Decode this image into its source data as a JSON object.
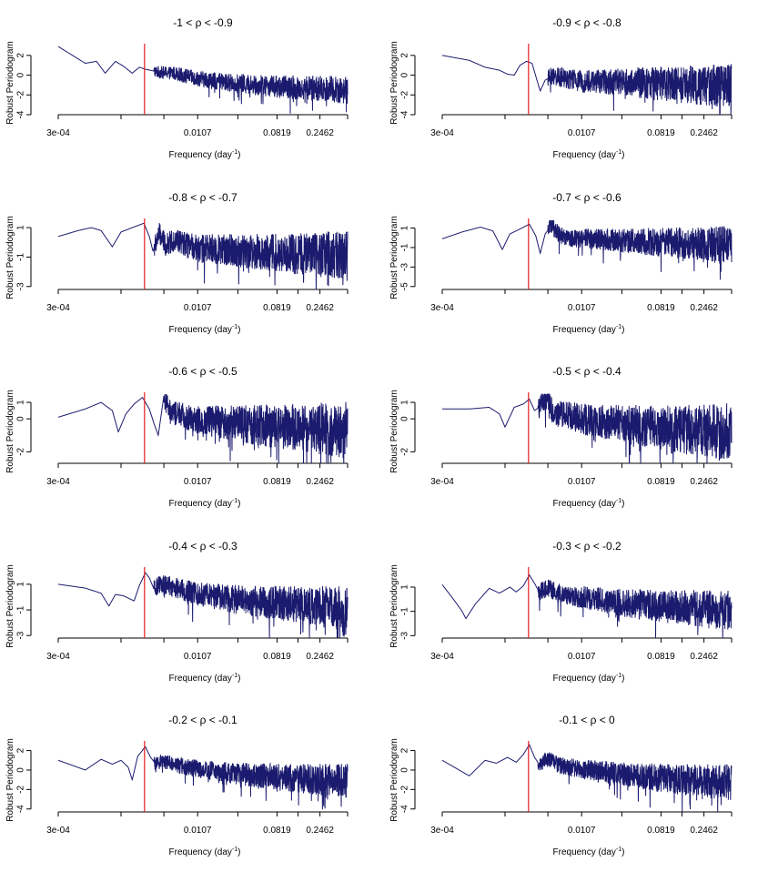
{
  "figure": {
    "xlabel": "Frequency (day",
    "xlabel_sup": "-1",
    "xlabel_close": ")",
    "ylabel": "Robust Periodogram",
    "x_tick_labels": [
      "3e-04",
      "0.0107",
      "0.0819",
      "0.2462"
    ],
    "x_tick_values": [
      0.0003,
      0.0107,
      0.0819,
      0.2462
    ],
    "x_range": [
      0.0003,
      0.5
    ],
    "line_color": "#1a1a6e",
    "marker_color": "#e41a1c",
    "marker_frequency": 0.00274
  },
  "chart_data": [
    {
      "type": "line",
      "title": "-1 < ρ <  -0.9",
      "ylim": [
        -4,
        3
      ],
      "yticks": [
        -4,
        -2,
        0,
        2
      ],
      "knots": [
        [
          0.0003,
          2.9
        ],
        [
          0.0006,
          1.2
        ],
        [
          0.0008,
          1.4
        ],
        [
          0.001,
          0.2
        ],
        [
          0.0013,
          1.4
        ],
        [
          0.0016,
          0.9
        ],
        [
          0.002,
          0.2
        ],
        [
          0.0024,
          0.8
        ],
        [
          0.0028,
          0.6
        ],
        [
          0.004,
          0.3
        ],
        [
          0.006,
          0.2
        ],
        [
          0.01,
          -0.3
        ],
        [
          0.02,
          -0.7
        ],
        [
          0.05,
          -1.0
        ],
        [
          0.1,
          -1.2
        ],
        [
          0.2,
          -1.3
        ],
        [
          0.5,
          -1.5
        ]
      ],
      "noise_start": 0.0035,
      "noise_amp": 0.6,
      "noise_growth": 1.4,
      "dip_bias": 1.2
    },
    {
      "type": "line",
      "title": "-0.9 < ρ <  -0.8",
      "ylim": [
        -4,
        3
      ],
      "yticks": [
        -4,
        -2,
        0,
        2
      ],
      "knots": [
        [
          0.0003,
          2.0
        ],
        [
          0.0006,
          1.5
        ],
        [
          0.0009,
          0.8
        ],
        [
          0.0013,
          0.5
        ],
        [
          0.0016,
          0.1
        ],
        [
          0.0019,
          0.0
        ],
        [
          0.0022,
          1.0
        ],
        [
          0.0026,
          1.4
        ],
        [
          0.003,
          1.2
        ],
        [
          0.0034,
          -0.5
        ],
        [
          0.0037,
          -1.6
        ],
        [
          0.0042,
          -0.5
        ],
        [
          0.005,
          -0.1
        ],
        [
          0.007,
          -0.3
        ],
        [
          0.01,
          -0.6
        ],
        [
          0.03,
          -0.7
        ],
        [
          0.1,
          -0.9
        ],
        [
          0.5,
          -1.1
        ]
      ],
      "noise_start": 0.0045,
      "noise_amp": 0.9,
      "noise_growth": 1.5,
      "dip_bias": 1.3
    },
    {
      "type": "line",
      "title": "-0.8 < ρ <  -0.7",
      "ylim": [
        -3.2,
        1.5
      ],
      "yticks": [
        -3,
        -1,
        1
      ],
      "knots": [
        [
          0.0003,
          0.4
        ],
        [
          0.0005,
          0.8
        ],
        [
          0.0007,
          1.0
        ],
        [
          0.0009,
          0.8
        ],
        [
          0.0012,
          -0.3
        ],
        [
          0.0015,
          0.7
        ],
        [
          0.002,
          1.0
        ],
        [
          0.0027,
          1.3
        ],
        [
          0.0031,
          0.4
        ],
        [
          0.0034,
          -0.6
        ],
        [
          0.004,
          0.6
        ],
        [
          0.0047,
          -0.2
        ],
        [
          0.006,
          0.2
        ],
        [
          0.008,
          -0.2
        ],
        [
          0.012,
          -0.4
        ],
        [
          0.04,
          -0.6
        ],
        [
          0.2,
          -0.8
        ],
        [
          0.5,
          -0.9
        ]
      ],
      "noise_start": 0.0035,
      "noise_amp": 0.7,
      "noise_growth": 1.4,
      "dip_bias": 1.2
    },
    {
      "type": "line",
      "title": "-0.7 < ρ <  -0.6",
      "ylim": [
        -5.3,
        1.8
      ],
      "yticks": [
        -5,
        -3,
        -1,
        1
      ],
      "knots": [
        [
          0.0003,
          -0.1
        ],
        [
          0.0005,
          0.6
        ],
        [
          0.0008,
          1.1
        ],
        [
          0.0011,
          0.7
        ],
        [
          0.0014,
          -1.2
        ],
        [
          0.0017,
          0.4
        ],
        [
          0.0022,
          0.9
        ],
        [
          0.0028,
          1.4
        ],
        [
          0.0033,
          0.2
        ],
        [
          0.0037,
          -1.6
        ],
        [
          0.0042,
          0.4
        ],
        [
          0.005,
          1.3
        ],
        [
          0.006,
          0.3
        ],
        [
          0.008,
          0.0
        ],
        [
          0.02,
          -0.2
        ],
        [
          0.1,
          -0.5
        ],
        [
          0.5,
          -0.7
        ]
      ],
      "noise_start": 0.0045,
      "noise_amp": 0.8,
      "noise_growth": 1.4,
      "dip_bias": 1.4
    },
    {
      "type": "line",
      "title": "-0.6 < ρ <  -0.5",
      "ylim": [
        -2.7,
        1.5
      ],
      "yticks": [
        -2,
        0,
        1
      ],
      "knots": [
        [
          0.0003,
          0.1
        ],
        [
          0.0006,
          0.6
        ],
        [
          0.0009,
          1.0
        ],
        [
          0.0012,
          0.5
        ],
        [
          0.0014,
          -0.8
        ],
        [
          0.0017,
          0.3
        ],
        [
          0.0021,
          0.9
        ],
        [
          0.0026,
          1.3
        ],
        [
          0.0031,
          0.6
        ],
        [
          0.0035,
          -0.3
        ],
        [
          0.0039,
          -1.0
        ],
        [
          0.0045,
          1.4
        ],
        [
          0.0052,
          0.4
        ],
        [
          0.007,
          0.2
        ],
        [
          0.01,
          0.0
        ],
        [
          0.03,
          -0.3
        ],
        [
          0.1,
          -0.5
        ],
        [
          0.5,
          -0.7
        ]
      ],
      "noise_start": 0.0045,
      "noise_amp": 0.7,
      "noise_growth": 1.5,
      "dip_bias": 1.2
    },
    {
      "type": "line",
      "title": "-0.5 < ρ <  -0.4",
      "ylim": [
        -2.7,
        1.5
      ],
      "yticks": [
        -2,
        0,
        1
      ],
      "knots": [
        [
          0.0003,
          0.6
        ],
        [
          0.0006,
          0.6
        ],
        [
          0.001,
          0.7
        ],
        [
          0.0013,
          0.3
        ],
        [
          0.0015,
          -0.5
        ],
        [
          0.0019,
          0.7
        ],
        [
          0.0024,
          0.9
        ],
        [
          0.0028,
          1.2
        ],
        [
          0.0032,
          0.5
        ],
        [
          0.0038,
          0.8
        ],
        [
          0.0045,
          1.4
        ],
        [
          0.0052,
          0.2
        ],
        [
          0.007,
          0.3
        ],
        [
          0.01,
          0.0
        ],
        [
          0.03,
          -0.3
        ],
        [
          0.1,
          -0.6
        ],
        [
          0.5,
          -0.8
        ]
      ],
      "noise_start": 0.0035,
      "noise_amp": 0.7,
      "noise_growth": 1.5,
      "dip_bias": 1.3
    },
    {
      "type": "line",
      "title": "-0.4 < ρ <  -0.3",
      "ylim": [
        -3.2,
        2.2
      ],
      "yticks": [
        -3,
        -1,
        1
      ],
      "knots": [
        [
          0.0003,
          1.0
        ],
        [
          0.0006,
          0.7
        ],
        [
          0.0009,
          0.3
        ],
        [
          0.0011,
          -0.7
        ],
        [
          0.0013,
          0.2
        ],
        [
          0.0016,
          0.1
        ],
        [
          0.0021,
          -0.3
        ],
        [
          0.0024,
          0.9
        ],
        [
          0.0028,
          1.9
        ],
        [
          0.0031,
          1.5
        ],
        [
          0.0035,
          0.6
        ],
        [
          0.004,
          1.0
        ],
        [
          0.005,
          0.9
        ],
        [
          0.007,
          0.6
        ],
        [
          0.01,
          0.3
        ],
        [
          0.03,
          -0.2
        ],
        [
          0.1,
          -0.5
        ],
        [
          0.5,
          -0.8
        ]
      ],
      "noise_start": 0.0035,
      "noise_amp": 0.7,
      "noise_growth": 1.4,
      "dip_bias": 1.2
    },
    {
      "type": "line",
      "title": "-0.3 < ρ <  -0.2",
      "ylim": [
        -3.2,
        2.5
      ],
      "yticks": [
        -3,
        -1,
        1
      ],
      "knots": [
        [
          0.0003,
          1.2
        ],
        [
          0.0004,
          0.0
        ],
        [
          0.0005,
          -1.0
        ],
        [
          0.00055,
          -1.6
        ],
        [
          0.0007,
          -0.4
        ],
        [
          0.001,
          0.9
        ],
        [
          0.0013,
          0.5
        ],
        [
          0.0017,
          1.0
        ],
        [
          0.002,
          0.6
        ],
        [
          0.0024,
          1.1
        ],
        [
          0.0028,
          2.0
        ],
        [
          0.0032,
          1.3
        ],
        [
          0.0036,
          0.6
        ],
        [
          0.0045,
          0.9
        ],
        [
          0.006,
          0.5
        ],
        [
          0.01,
          0.2
        ],
        [
          0.03,
          -0.3
        ],
        [
          0.1,
          -0.6
        ],
        [
          0.5,
          -0.9
        ]
      ],
      "noise_start": 0.0035,
      "noise_amp": 0.7,
      "noise_growth": 1.4,
      "dip_bias": 1.2
    },
    {
      "type": "line",
      "title": "-0.2 < ρ <  -0.1",
      "ylim": [
        -4.3,
        2.8
      ],
      "yticks": [
        -4,
        -2,
        0,
        2
      ],
      "knots": [
        [
          0.0003,
          1.0
        ],
        [
          0.0006,
          0.0
        ],
        [
          0.0009,
          1.1
        ],
        [
          0.0012,
          0.6
        ],
        [
          0.0015,
          1.0
        ],
        [
          0.0018,
          0.3
        ],
        [
          0.002,
          -1.0
        ],
        [
          0.0023,
          1.4
        ],
        [
          0.0028,
          2.4
        ],
        [
          0.0032,
          1.3
        ],
        [
          0.0036,
          0.7
        ],
        [
          0.0045,
          0.9
        ],
        [
          0.006,
          0.5
        ],
        [
          0.01,
          0.2
        ],
        [
          0.03,
          -0.4
        ],
        [
          0.1,
          -0.8
        ],
        [
          0.5,
          -1.1
        ]
      ],
      "noise_start": 0.0035,
      "noise_amp": 0.7,
      "noise_growth": 1.5,
      "dip_bias": 1.2
    },
    {
      "type": "line",
      "title": "-0.1 < ρ <  0",
      "ylim": [
        -4.3,
        2.8
      ],
      "yticks": [
        -4,
        -2,
        0,
        2
      ],
      "knots": [
        [
          0.0003,
          1.0
        ],
        [
          0.0006,
          -0.6
        ],
        [
          0.0009,
          1.0
        ],
        [
          0.0012,
          0.7
        ],
        [
          0.0016,
          1.3
        ],
        [
          0.002,
          0.8
        ],
        [
          0.0024,
          1.6
        ],
        [
          0.0028,
          2.6
        ],
        [
          0.0032,
          1.3
        ],
        [
          0.0036,
          0.6
        ],
        [
          0.0045,
          1.2
        ],
        [
          0.006,
          0.5
        ],
        [
          0.01,
          0.1
        ],
        [
          0.03,
          -0.4
        ],
        [
          0.1,
          -0.9
        ],
        [
          0.5,
          -1.3
        ]
      ],
      "noise_start": 0.0035,
      "noise_amp": 0.75,
      "noise_growth": 1.5,
      "dip_bias": 1.3
    }
  ]
}
